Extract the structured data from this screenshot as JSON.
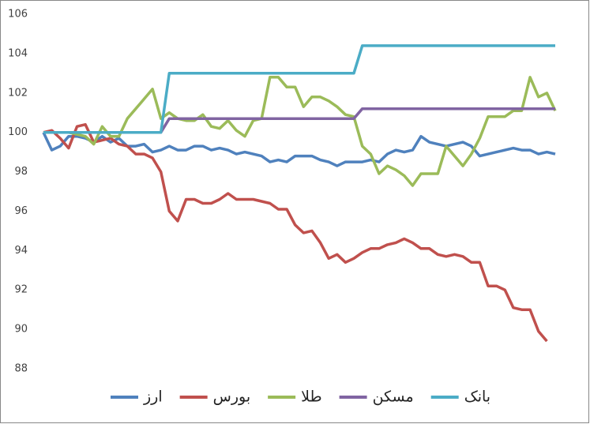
{
  "chart_data": {
    "type": "line",
    "categories": [
      null,
      null,
      null,
      null,
      null,
      null,
      null,
      null,
      null,
      null,
      null,
      null,
      null,
      null,
      null,
      null,
      null,
      null,
      null,
      null,
      null,
      null,
      null,
      null,
      null,
      null,
      null,
      null,
      null,
      null,
      null,
      null,
      null,
      null,
      null,
      null,
      null,
      null,
      null,
      null,
      null,
      null,
      null,
      null,
      null,
      null,
      null,
      null,
      null,
      null,
      null,
      null,
      null,
      null,
      null,
      null,
      null,
      null,
      null,
      null,
      null,
      null
    ],
    "ylim": [
      88,
      106
    ],
    "yticks": [
      88,
      90,
      92,
      94,
      96,
      98,
      100,
      102,
      104,
      106
    ],
    "grid": false,
    "legend": "bottom",
    "series": [
      {
        "name": "ارز",
        "color": "#4f81bd",
        "values": [
          100,
          99.1,
          99.3,
          99.8,
          99.8,
          99.7,
          99.5,
          99.8,
          99.5,
          99.7,
          99.3,
          99.3,
          99.4,
          99.0,
          99.1,
          99.3,
          99.1,
          99.1,
          99.3,
          99.3,
          99.1,
          99.2,
          99.1,
          98.9,
          99.0,
          98.9,
          98.8,
          98.5,
          98.6,
          98.5,
          98.8,
          98.8,
          98.8,
          98.6,
          98.5,
          98.3,
          98.5,
          98.5,
          98.5,
          98.6,
          98.5,
          98.9,
          99.1,
          99.0,
          99.1,
          99.8,
          99.5,
          99.4,
          99.3,
          99.4,
          99.5,
          99.3,
          98.8,
          98.9,
          99.0,
          99.1,
          99.2,
          99.1,
          99.1,
          98.9,
          99.0,
          98.9
        ]
      },
      {
        "name": "بورس",
        "color": "#c0504d",
        "values": [
          100,
          100.1,
          99.7,
          99.2,
          100.3,
          100.4,
          99.5,
          99.6,
          99.7,
          99.4,
          99.3,
          98.9,
          98.9,
          98.7,
          98.0,
          96.0,
          95.5,
          96.6,
          96.6,
          96.4,
          96.4,
          96.6,
          96.9,
          96.6,
          96.6,
          96.6,
          96.5,
          96.4,
          96.1,
          96.1,
          95.3,
          94.9,
          95.0,
          94.4,
          93.6,
          93.8,
          93.4,
          93.6,
          93.9,
          94.1,
          94.1,
          94.3,
          94.4,
          94.6,
          94.4,
          94.1,
          94.1,
          93.8,
          93.7,
          93.8,
          93.7,
          93.4,
          93.4,
          92.2,
          92.2,
          92.0,
          91.1,
          91.0,
          91.0,
          89.9,
          89.4,
          null
        ]
      },
      {
        "name": "طلا",
        "color": "#9bbb59",
        "values": [
          100,
          100,
          100,
          100,
          99.9,
          99.8,
          99.4,
          100.3,
          99.8,
          99.8,
          100.7,
          101.2,
          101.7,
          102.2,
          100.7,
          101.0,
          100.7,
          100.6,
          100.6,
          100.9,
          100.3,
          100.2,
          100.6,
          100.1,
          99.8,
          100.6,
          100.7,
          102.8,
          102.8,
          102.3,
          102.3,
          101.3,
          101.8,
          101.8,
          101.6,
          101.3,
          100.9,
          100.8,
          99.3,
          98.9,
          97.9,
          98.3,
          98.1,
          97.8,
          97.3,
          97.9,
          97.9,
          97.9,
          99.3,
          98.8,
          98.3,
          98.9,
          99.7,
          100.8,
          100.8,
          100.8,
          101.1,
          101.1,
          102.8,
          101.8,
          102.0,
          101.1
        ]
      },
      {
        "name": "مسکن",
        "color": "#8064a2",
        "values": [
          100,
          100,
          100,
          100,
          100,
          100,
          100,
          100,
          100,
          100,
          100,
          100,
          100,
          100,
          100,
          100.7,
          100.7,
          100.7,
          100.7,
          100.7,
          100.7,
          100.7,
          100.7,
          100.7,
          100.7,
          100.7,
          100.7,
          100.7,
          100.7,
          100.7,
          100.7,
          100.7,
          100.7,
          100.7,
          100.7,
          100.7,
          100.7,
          100.7,
          101.2,
          101.2,
          101.2,
          101.2,
          101.2,
          101.2,
          101.2,
          101.2,
          101.2,
          101.2,
          101.2,
          101.2,
          101.2,
          101.2,
          101.2,
          101.2,
          101.2,
          101.2,
          101.2,
          101.2,
          101.2,
          101.2,
          101.2,
          101.2
        ]
      },
      {
        "name": "بانک",
        "color": "#4bacc6",
        "values": [
          100,
          100,
          100,
          100,
          100,
          100,
          100,
          100,
          100,
          100,
          100,
          100,
          100,
          100,
          100,
          103,
          103,
          103,
          103,
          103,
          103,
          103,
          103,
          103,
          103,
          103,
          103,
          103,
          103,
          103,
          103,
          103,
          103,
          103,
          103,
          103,
          103,
          103,
          104.4,
          104.4,
          104.4,
          104.4,
          104.4,
          104.4,
          104.4,
          104.4,
          104.4,
          104.4,
          104.4,
          104.4,
          104.4,
          104.4,
          104.4,
          104.4,
          104.4,
          104.4,
          104.4,
          104.4,
          104.4,
          104.4,
          104.4,
          104.4
        ]
      }
    ]
  }
}
